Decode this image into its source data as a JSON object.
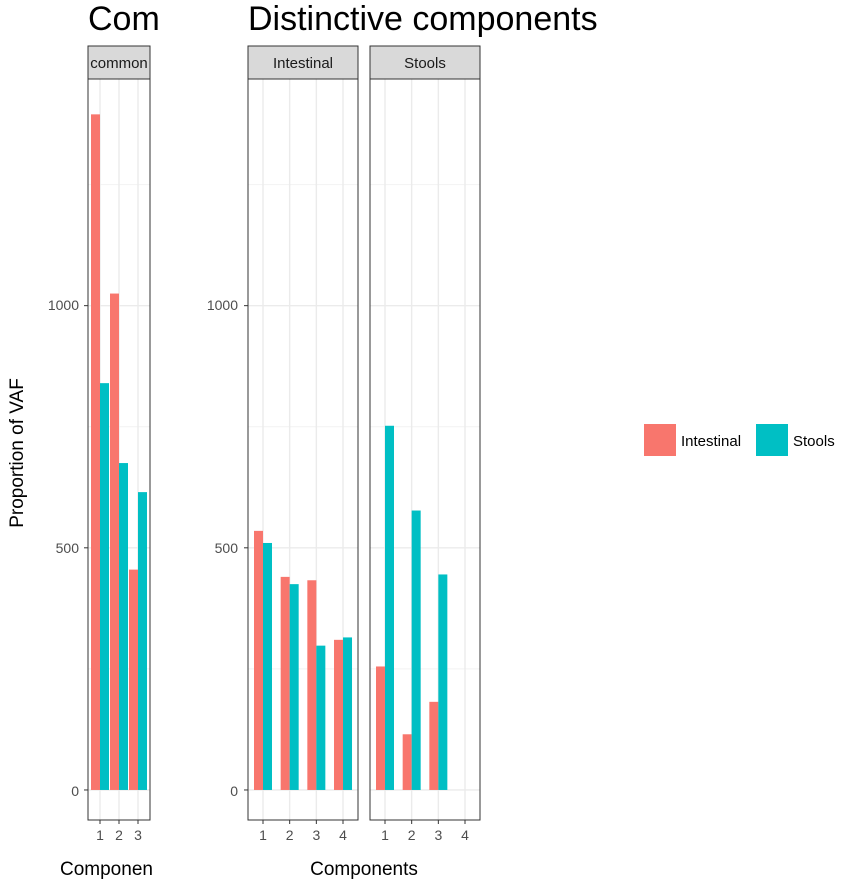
{
  "colors": {
    "intestinal": "#F8766D",
    "stools": "#00BFC4"
  },
  "chart_data": {
    "type": "bar",
    "ylabel": "Proportion of VAF",
    "legend": {
      "placement": "right",
      "entries": [
        {
          "name": "Intestinal",
          "color": "#F8766D"
        },
        {
          "name": "Stools",
          "color": "#00BFC4"
        }
      ]
    },
    "yticks": [
      0,
      500,
      1000
    ],
    "ylim": [
      -62,
      1468
    ],
    "grid": true,
    "panels": [
      {
        "title": "Com",
        "xlabel": "Componen",
        "facets": [
          {
            "strip": "common",
            "categories": [
              "1",
              "2",
              "3"
            ],
            "series": [
              {
                "name": "Intestinal",
                "values": [
                  1395,
                  1025,
                  455
                ]
              },
              {
                "name": "Stools",
                "values": [
                  840,
                  675,
                  615
                ]
              }
            ]
          }
        ]
      },
      {
        "title": "Distinctive components",
        "xlabel": "Components",
        "facets": [
          {
            "strip": "Intestinal",
            "categories": [
              "1",
              "2",
              "3",
              "4"
            ],
            "series": [
              {
                "name": "Intestinal",
                "values": [
                  535,
                  440,
                  433,
                  310
                ]
              },
              {
                "name": "Stools",
                "values": [
                  510,
                  425,
                  298,
                  315
                ]
              }
            ]
          },
          {
            "strip": "Stools",
            "categories": [
              "1",
              "2",
              "3",
              "4"
            ],
            "series": [
              {
                "name": "Intestinal",
                "values": [
                  255,
                  115,
                  182,
                  null
                ]
              },
              {
                "name": "Stools",
                "values": [
                  752,
                  577,
                  445,
                  null
                ]
              }
            ]
          }
        ]
      }
    ]
  }
}
